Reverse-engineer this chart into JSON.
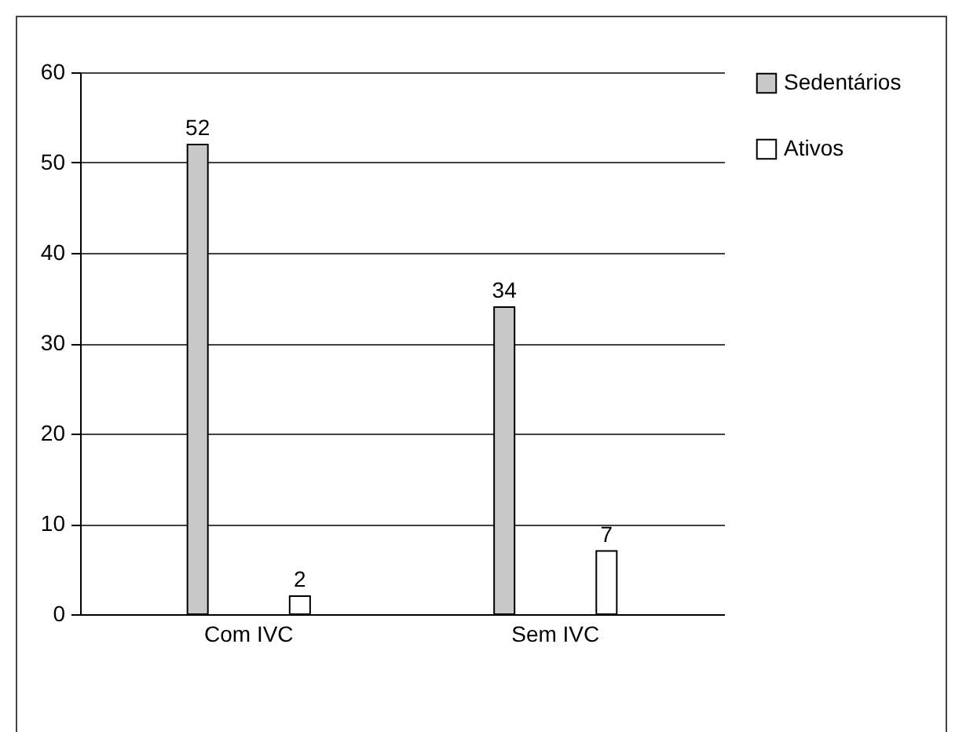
{
  "chart_data": {
    "type": "bar",
    "categories": [
      "Com IVC",
      "Sem IVC"
    ],
    "series": [
      {
        "name": "Sedentários",
        "color": "#c8c8c8",
        "values": [
          52,
          34
        ]
      },
      {
        "name": "Ativos",
        "color": "#ffffff",
        "values": [
          2,
          7
        ]
      }
    ],
    "ylim": [
      0,
      60
    ],
    "yticks": [
      0,
      10,
      20,
      30,
      40,
      50,
      60
    ],
    "grid": "y",
    "legend": "right",
    "data_labels": true
  }
}
